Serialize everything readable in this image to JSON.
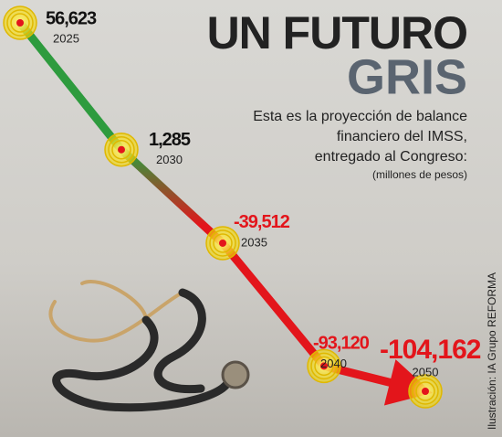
{
  "chart_data": {
    "type": "line",
    "title": "UN FUTURO",
    "title_highlight": "GRIS",
    "subtitle": [
      "Esta es la proyección de balance",
      "financiero del IMSS,",
      "entregado al Congreso:"
    ],
    "units": "(millones de pesos)",
    "credit": "Ilustración: IA Grupo REFORMA",
    "categories": [
      "2025",
      "2030",
      "2035",
      "2040",
      "2050"
    ],
    "values": [
      56623,
      1285,
      -39512,
      -93120,
      -104162
    ],
    "value_labels": [
      "56,623",
      "1,285",
      "-39,512",
      "-93,120",
      "-104,162"
    ],
    "line_colors": [
      "#2e9b3e",
      "#e3151b"
    ]
  }
}
